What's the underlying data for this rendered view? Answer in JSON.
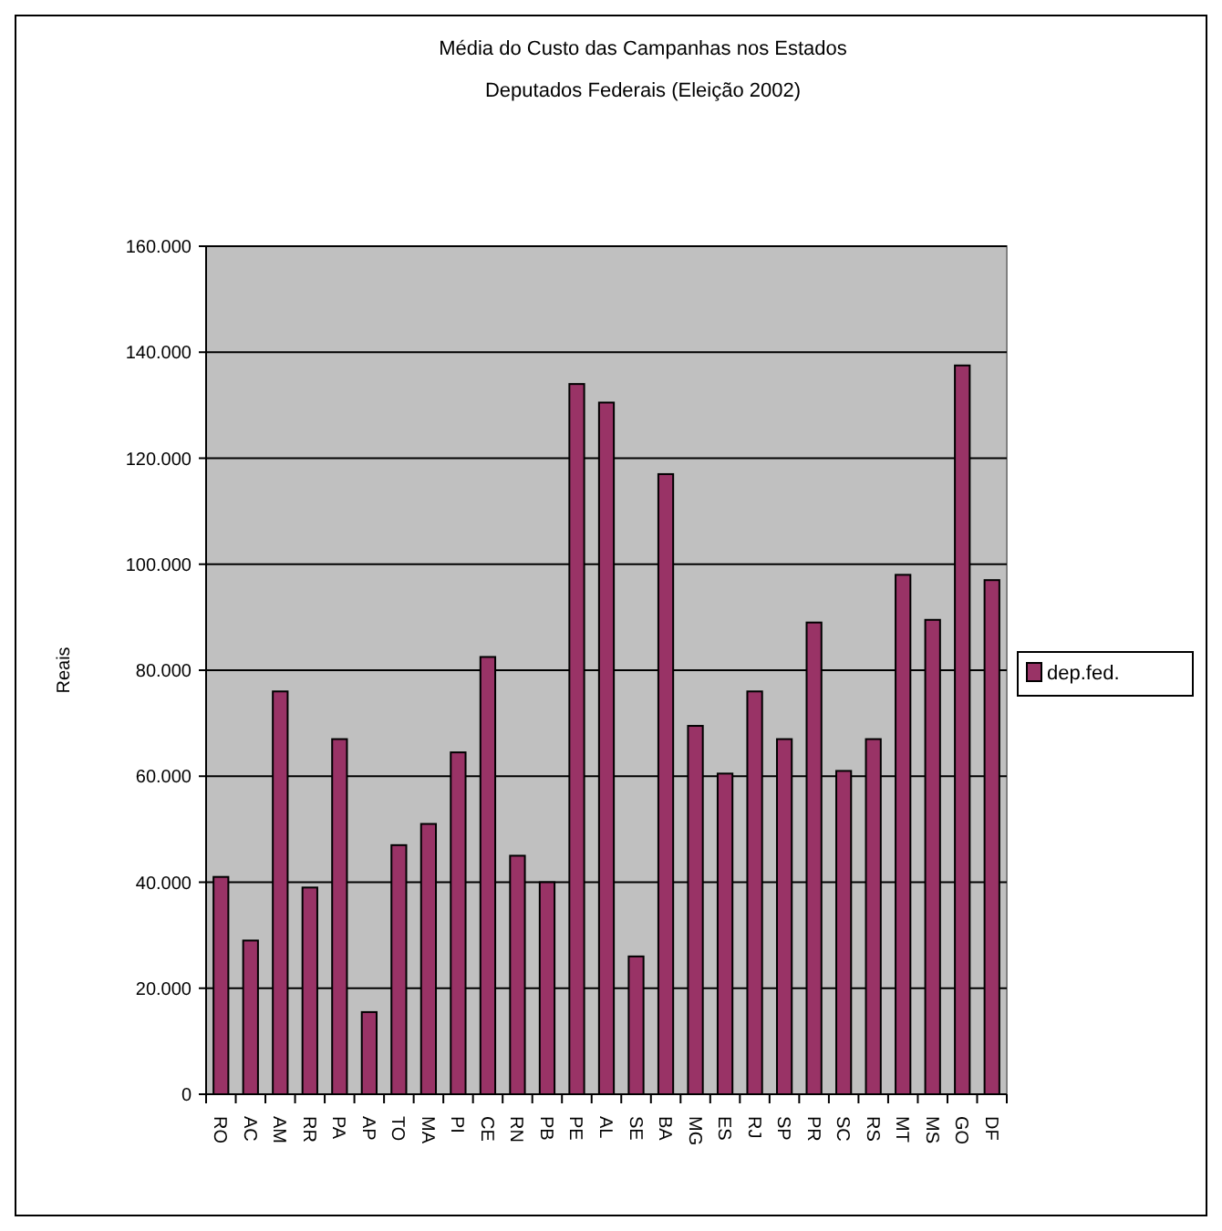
{
  "chart_data": {
    "type": "bar",
    "title": "Média do Custo das Campanhas nos Estados",
    "subtitle": "Deputados Federais (Eleição 2002)",
    "ylabel": "Reais",
    "categories": [
      "RO",
      "AC",
      "AM",
      "RR",
      "PA",
      "AP",
      "TO",
      "MA",
      "PI",
      "CE",
      "RN",
      "PB",
      "PE",
      "AL",
      "SE",
      "BA",
      "MG",
      "ES",
      "RJ",
      "SP",
      "PR",
      "SC",
      "RS",
      "MT",
      "MS",
      "GO",
      "DF"
    ],
    "series": [
      {
        "name": "dep.fed.",
        "color": "#993366",
        "values": [
          41000,
          29000,
          76000,
          39000,
          67000,
          15500,
          47000,
          51000,
          64500,
          82500,
          45000,
          40000,
          134000,
          130500,
          26000,
          117000,
          69500,
          60500,
          76000,
          67000,
          89000,
          61000,
          67000,
          98000,
          89500,
          137500,
          97000
        ]
      }
    ],
    "ylim": [
      0,
      160000
    ],
    "yticks": [
      {
        "value": 0,
        "label": "0"
      },
      {
        "value": 20000,
        "label": "20.000"
      },
      {
        "value": 40000,
        "label": "40.000"
      },
      {
        "value": 60000,
        "label": "60.000"
      },
      {
        "value": 80000,
        "label": "80.000"
      },
      {
        "value": 100000,
        "label": "100.000"
      },
      {
        "value": 120000,
        "label": "120.000"
      },
      {
        "value": 140000,
        "label": "140.000"
      },
      {
        "value": 160000,
        "label": "160.000"
      }
    ],
    "grid": "y",
    "legend": "right"
  }
}
